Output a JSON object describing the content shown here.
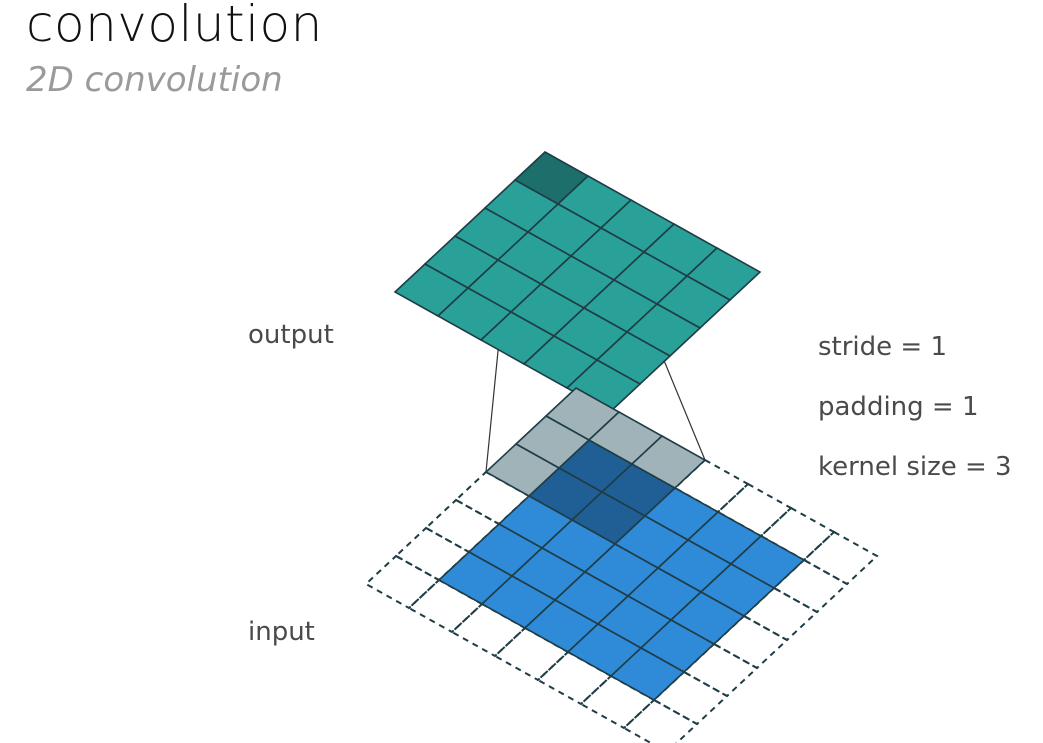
{
  "header": {
    "title": "convolution",
    "subtitle": "2D convolution"
  },
  "diagram": {
    "labels": {
      "output": "output",
      "input": "input"
    },
    "params": [
      "stride = 1",
      "padding = 1",
      "kernel size = 3"
    ],
    "grid": {
      "input_size": 5,
      "padding": 1,
      "kernel_size": 3,
      "stride": 1,
      "output_size": 5,
      "kernel_position": [
        0,
        0
      ]
    },
    "colors": {
      "output_fill": "#2aa198",
      "output_active": "#1c6f6b",
      "input_fill": "#2f8ad8",
      "kernel_overlap": "#1f5f95",
      "kernel_padding": "#9fb3b8",
      "grid_line": "#1e3d46",
      "connector_line": "#333333",
      "text": "#4a4a4a"
    }
  }
}
